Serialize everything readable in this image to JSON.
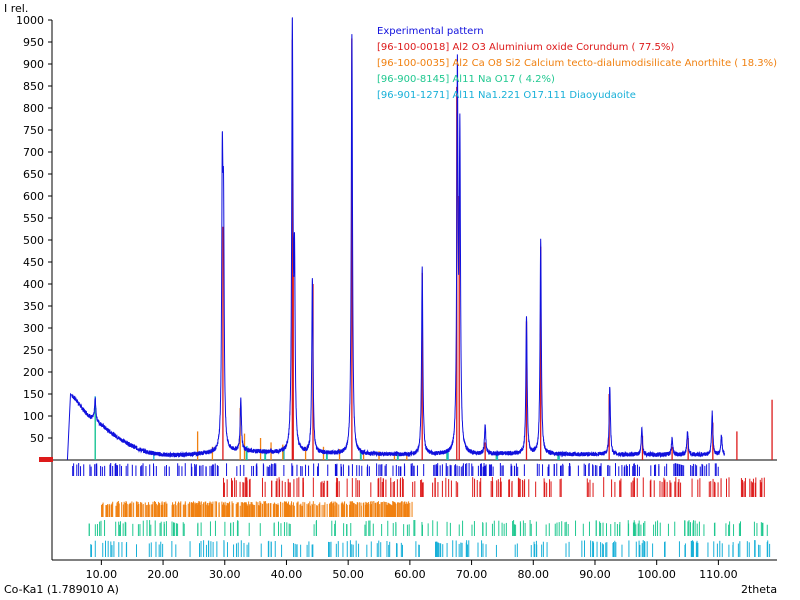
{
  "chart_data": {
    "type": "line",
    "ylabel": "I rel.",
    "xlabel": "2theta",
    "footer_left": "Co-Ka1 (1.789010 A)",
    "xlim": [
      2.0,
      119.5
    ],
    "ylim": [
      0,
      1000
    ],
    "x_ticks": [
      "10.00",
      "20.00",
      "30.00",
      "40.00",
      "50.00",
      "60.00",
      "70.00",
      "80.00",
      "90.00",
      "100.00",
      "110.00"
    ],
    "x_tick_values": [
      10,
      20,
      30,
      40,
      50,
      60,
      70,
      80,
      90,
      100,
      110
    ],
    "y_ticks": [
      "1000",
      "950",
      "900",
      "850",
      "800",
      "750",
      "700",
      "650",
      "600",
      "550",
      "500",
      "450",
      "400",
      "350",
      "300",
      "250",
      "200",
      "150",
      "100",
      "50"
    ],
    "y_tick_values": [
      1000,
      950,
      900,
      850,
      800,
      750,
      700,
      650,
      600,
      550,
      500,
      450,
      400,
      350,
      300,
      250,
      200,
      150,
      100,
      50
    ],
    "legend": [
      {
        "label": "Experimental pattern",
        "color": "#1010dd"
      },
      {
        "label": "[96-100-0018] Al2 O3 Aluminium oxide Corundum ( 77.5%)",
        "color": "#dd1a1a"
      },
      {
        "label": "[96-100-0035] Al2 Ca O8 Si2 Calcium tecto-dialumodisilicate Anorthite ( 18.3%)",
        "color": "#f08010"
      },
      {
        "label": "[96-900-8145] Al11 Na O17  (  4.2%)",
        "color": "#20c890"
      },
      {
        "label": "[96-901-1271] Al11 Na1.221 O17.111 Diaoyudaoite",
        "color": "#18b0d8"
      }
    ],
    "series": [
      {
        "name": "Experimental pattern",
        "baseline_points": [
          [
            4.5,
            0
          ],
          [
            5.0,
            150
          ],
          [
            6,
            135
          ],
          [
            7,
            115
          ],
          [
            8,
            100
          ],
          [
            9,
            90
          ],
          [
            10,
            80
          ],
          [
            11,
            68
          ],
          [
            12,
            58
          ],
          [
            13,
            48
          ],
          [
            14,
            40
          ],
          [
            15,
            32
          ],
          [
            16,
            25
          ],
          [
            17,
            20
          ],
          [
            18,
            16
          ],
          [
            19,
            14
          ],
          [
            20,
            12
          ],
          [
            22,
            11
          ],
          [
            24,
            12
          ],
          [
            26,
            14
          ],
          [
            28,
            16
          ],
          [
            30,
            18
          ],
          [
            32,
            20
          ],
          [
            34,
            20
          ],
          [
            36,
            18
          ],
          [
            38,
            17
          ],
          [
            40,
            16
          ],
          [
            45,
            15
          ],
          [
            50,
            14
          ],
          [
            55,
            13
          ],
          [
            60,
            12
          ],
          [
            65,
            13
          ],
          [
            70,
            13
          ],
          [
            75,
            14
          ],
          [
            80,
            14
          ],
          [
            85,
            13
          ],
          [
            90,
            13
          ],
          [
            95,
            12
          ],
          [
            100,
            12
          ],
          [
            105,
            12
          ],
          [
            110,
            12
          ],
          [
            111,
            12
          ]
        ],
        "peaks": [
          [
            9.0,
            50
          ],
          [
            29.6,
            600
          ],
          [
            29.8,
            480
          ],
          [
            32.6,
            120
          ],
          [
            40.95,
            955
          ],
          [
            41.3,
            400
          ],
          [
            44.2,
            400
          ],
          [
            50.6,
            958
          ],
          [
            62.0,
            425
          ],
          [
            67.7,
            848
          ],
          [
            68.1,
            700
          ],
          [
            72.2,
            65
          ],
          [
            78.9,
            315
          ],
          [
            81.2,
            485
          ],
          [
            92.4,
            155
          ],
          [
            97.6,
            60
          ],
          [
            102.5,
            40
          ],
          [
            105.0,
            55
          ],
          [
            109.0,
            95
          ],
          [
            110.5,
            45
          ]
        ]
      },
      {
        "name": "[96-100-0018] Al2 O3 Aluminium oxide Corundum ( 77.5%)",
        "peaks": [
          [
            29.7,
            530
          ],
          [
            40.95,
            955
          ],
          [
            41.1,
            420
          ],
          [
            44.3,
            400
          ],
          [
            50.6,
            958
          ],
          [
            62.0,
            425
          ],
          [
            67.6,
            848
          ],
          [
            68.0,
            600
          ],
          [
            72.2,
            40
          ],
          [
            78.9,
            315
          ],
          [
            81.2,
            485
          ],
          [
            92.3,
            150
          ],
          [
            97.7,
            55
          ],
          [
            102.5,
            30
          ],
          [
            105.1,
            50
          ],
          [
            109.1,
            85
          ],
          [
            113.0,
            65
          ],
          [
            118.7,
            137
          ]
        ]
      },
      {
        "name": "[96-100-0035] Al2 Ca O8 Si2 Calcium tecto-dialumodisilicate Anorthite ( 18.3%)",
        "peaks": [
          [
            25.6,
            65
          ],
          [
            28.0,
            30
          ],
          [
            32.5,
            118
          ],
          [
            33.2,
            60
          ],
          [
            35.8,
            50
          ],
          [
            37.5,
            40
          ],
          [
            39.4,
            35
          ],
          [
            43.1,
            30
          ],
          [
            46.0,
            30
          ],
          [
            48.6,
            25
          ],
          [
            52.5,
            20
          ],
          [
            55.0,
            20
          ],
          [
            57.5,
            15
          ],
          [
            59.5,
            15
          ]
        ]
      },
      {
        "name": "[96-900-8145] Al11 Na O17  (  4.2%)",
        "peaks": [
          [
            9.0,
            140
          ],
          [
            33.5,
            30
          ],
          [
            36.5,
            25
          ],
          [
            39.5,
            30
          ],
          [
            46.5,
            22
          ],
          [
            52.0,
            20
          ],
          [
            58.0,
            18
          ],
          [
            66.0,
            20
          ],
          [
            74.0,
            15
          ],
          [
            84.0,
            12
          ]
        ]
      },
      {
        "name": "[96-901-1271] Al11 Na1.221 O17.111 Diaoyudaoite",
        "peaks": [
          [
            9.0,
            145
          ],
          [
            18.5,
            20
          ],
          [
            33.6,
            32
          ],
          [
            36.6,
            22
          ],
          [
            39.6,
            28
          ],
          [
            46.6,
            20
          ],
          [
            52.1,
            18
          ],
          [
            58.1,
            16
          ],
          [
            66.2,
            18
          ],
          [
            74.2,
            14
          ],
          [
            84.2,
            11
          ]
        ]
      }
    ],
    "reflection_rows": [
      {
        "name": "Experimental pattern",
        "color": "#1010dd",
        "range": [
          4.8,
          110.5
        ]
      },
      {
        "name": "Corundum",
        "color": "#dd1a1a",
        "range": [
          29.0,
          119.0
        ]
      },
      {
        "name": "Anorthite",
        "color": "#f08010",
        "range": [
          10.0,
          60.5
        ]
      },
      {
        "name": "Al11 Na O17",
        "color": "#20c890",
        "range": [
          8.0,
          119.0
        ]
      },
      {
        "name": "Diaoyudaoite",
        "color": "#18b0d8",
        "range": [
          8.0,
          119.0
        ]
      }
    ],
    "grid": false,
    "legend_position": "top-right"
  }
}
